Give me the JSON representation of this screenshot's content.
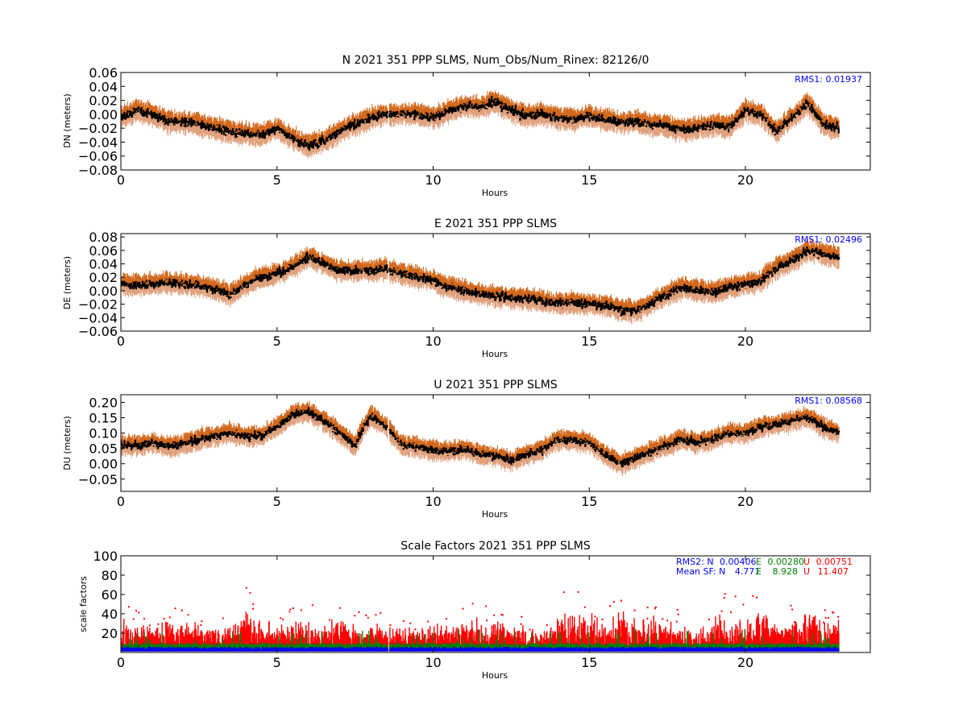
{
  "colors": {
    "error_upper": "#d2691e",
    "error_lower": "#e0a17d",
    "series_main": "#000000",
    "scale_N": "#0000ff",
    "scale_E": "#008000",
    "scale_U": "#ff0000",
    "annotation_blue": "#0000ff"
  },
  "chart_data": [
    {
      "type": "scatter",
      "title": "N 2021 351 PPP  SLMS, Num_Obs/Num_Rinex: 82126/0",
      "xlabel": "Hours",
      "ylabel": "DN (meters)",
      "xlim": [
        0,
        24
      ],
      "ylim": [
        -0.08,
        0.06
      ],
      "xticks": [
        0,
        5,
        10,
        15,
        20
      ],
      "xticklabels": [
        "0",
        "5",
        "10",
        "15",
        "20"
      ],
      "yticks": [
        -0.08,
        -0.06,
        -0.04,
        -0.02,
        0.0,
        0.02,
        0.04,
        0.06
      ],
      "yticklabels": [
        "−0.08",
        "−0.06",
        "−0.04",
        "−0.02",
        "0.00",
        "0.02",
        "0.04",
        "0.06"
      ],
      "annotation": "RMS1:  0.01937",
      "data_gap": [
        8.55,
        8.6
      ],
      "error_band": 0.012,
      "trend": {
        "x": [
          0,
          0.5,
          1,
          1.5,
          2,
          2.5,
          3,
          3.5,
          4,
          4.5,
          5,
          5.5,
          6,
          6.5,
          7,
          7.5,
          8,
          8.5,
          9,
          9.5,
          10,
          10.5,
          11,
          11.5,
          12,
          12.5,
          13,
          13.5,
          14,
          14.5,
          15,
          15.5,
          16,
          16.5,
          17,
          17.5,
          18,
          18.5,
          19,
          19.5,
          20,
          20.5,
          21,
          21.5,
          22,
          22.5,
          23
        ],
        "y": [
          -0.005,
          0.005,
          0.0,
          -0.01,
          -0.012,
          -0.015,
          -0.02,
          -0.025,
          -0.028,
          -0.03,
          -0.02,
          -0.035,
          -0.045,
          -0.038,
          -0.025,
          -0.015,
          -0.005,
          0.0,
          0.0,
          0.0,
          -0.005,
          0.005,
          0.012,
          0.01,
          0.018,
          0.005,
          -0.002,
          0.0,
          -0.005,
          -0.008,
          -0.002,
          -0.008,
          -0.012,
          -0.01,
          -0.015,
          -0.018,
          -0.022,
          -0.02,
          -0.015,
          -0.018,
          0.005,
          0.0,
          -0.025,
          -0.005,
          0.015,
          -0.015,
          -0.02
        ]
      }
    },
    {
      "type": "scatter",
      "title": "E 2021 351 PPP  SLMS",
      "xlabel": "Hours",
      "ylabel": "DE (meters)",
      "xlim": [
        0,
        24
      ],
      "ylim": [
        -0.06,
        0.085
      ],
      "xticks": [
        0,
        5,
        10,
        15,
        20
      ],
      "xticklabels": [
        "0",
        "5",
        "10",
        "15",
        "20"
      ],
      "yticks": [
        -0.06,
        -0.04,
        -0.02,
        0.0,
        0.02,
        0.04,
        0.06,
        0.08
      ],
      "yticklabels": [
        "−0.06",
        "−0.04",
        "−0.02",
        "0.00",
        "0.02",
        "0.04",
        "0.06",
        "0.08"
      ],
      "annotation": "RMS1:  0.02496",
      "data_gap": [
        8.55,
        8.6
      ],
      "error_band": 0.012,
      "trend": {
        "x": [
          0,
          0.5,
          1,
          1.5,
          2,
          2.5,
          3,
          3.5,
          4,
          4.5,
          5,
          5.5,
          6,
          6.5,
          7,
          7.5,
          8,
          8.5,
          9,
          9.5,
          10,
          10.5,
          11,
          11.5,
          12,
          12.5,
          13,
          13.5,
          14,
          14.5,
          15,
          15.5,
          16,
          16.5,
          17,
          17.5,
          18,
          18.5,
          19,
          19.5,
          20,
          20.5,
          21,
          21.5,
          22,
          22.5,
          23
        ],
        "y": [
          0.01,
          0.008,
          0.01,
          0.012,
          0.01,
          0.008,
          0.002,
          -0.005,
          0.01,
          0.02,
          0.025,
          0.035,
          0.05,
          0.04,
          0.03,
          0.03,
          0.03,
          0.032,
          0.025,
          0.02,
          0.015,
          0.005,
          0.0,
          -0.005,
          -0.008,
          -0.01,
          -0.012,
          -0.015,
          -0.018,
          -0.018,
          -0.02,
          -0.022,
          -0.028,
          -0.03,
          -0.018,
          -0.005,
          0.005,
          0.0,
          -0.002,
          0.005,
          0.01,
          0.015,
          0.035,
          0.045,
          0.06,
          0.055,
          0.05
        ]
      }
    },
    {
      "type": "scatter",
      "title": "U 2021 351 PPP  SLMS",
      "xlabel": "Hours",
      "ylabel": "DU (meters)",
      "xlim": [
        0,
        24
      ],
      "ylim": [
        -0.09,
        0.225
      ],
      "xticks": [
        0,
        5,
        10,
        15,
        20
      ],
      "xticklabels": [
        "0",
        "5",
        "10",
        "15",
        "20"
      ],
      "yticks": [
        -0.05,
        0.0,
        0.05,
        0.1,
        0.15,
        0.2
      ],
      "yticklabels": [
        "−0.05",
        "0.00",
        "0.05",
        "0.10",
        "0.15",
        "0.20"
      ],
      "annotation": "RMS1:  0.08568",
      "data_gap": [
        8.55,
        8.6
      ],
      "error_band": 0.025,
      "trend": {
        "x": [
          0,
          0.5,
          1,
          1.5,
          2,
          2.5,
          3,
          3.5,
          4,
          4.5,
          5,
          5.5,
          6,
          6.5,
          7,
          7.5,
          8,
          8.5,
          9,
          9.5,
          10,
          10.5,
          11,
          11.5,
          12,
          12.5,
          13,
          13.5,
          14,
          14.5,
          15,
          15.5,
          16,
          16.5,
          17,
          17.5,
          18,
          18.5,
          19,
          19.5,
          20,
          20.5,
          21,
          21.5,
          22,
          22.5,
          23
        ],
        "y": [
          0.06,
          0.06,
          0.07,
          0.055,
          0.065,
          0.08,
          0.09,
          0.1,
          0.09,
          0.09,
          0.12,
          0.16,
          0.17,
          0.14,
          0.1,
          0.06,
          0.16,
          0.12,
          0.06,
          0.055,
          0.045,
          0.04,
          0.05,
          0.03,
          0.025,
          0.01,
          0.03,
          0.045,
          0.08,
          0.075,
          0.07,
          0.03,
          0.0,
          0.02,
          0.04,
          0.06,
          0.08,
          0.07,
          0.08,
          0.1,
          0.1,
          0.12,
          0.13,
          0.14,
          0.15,
          0.12,
          0.1
        ]
      }
    },
    {
      "type": "scatter",
      "title": "Scale Factors 2021 351 PPP  SLMS",
      "xlabel": "Hours",
      "ylabel": "scale factors",
      "xlim": [
        0,
        24
      ],
      "ylim": [
        0,
        100
      ],
      "xticks": [
        0,
        5,
        10,
        15,
        20
      ],
      "xticklabels": [
        "0",
        "5",
        "10",
        "15",
        "20"
      ],
      "yticks": [
        20,
        40,
        60,
        80,
        100
      ],
      "yticklabels": [
        "20",
        "40",
        "60",
        "80",
        "100"
      ],
      "data_gap": [
        8.55,
        8.6
      ],
      "rms2": {
        "label": "RMS2: N",
        "N": "0.00406",
        "E_label": "E",
        "E": "0.00280",
        "U_label": "U",
        "U": "0.00751"
      },
      "mean_sf": {
        "label": "Mean SF: N",
        "N": "4.771",
        "E_label": "E",
        "E": "8.928",
        "U_label": "U",
        "U": "11.407"
      },
      "series": [
        {
          "name": "N",
          "mean": 4.771
        },
        {
          "name": "E",
          "mean": 8.928
        },
        {
          "name": "U",
          "mean": 11.407
        }
      ]
    }
  ]
}
